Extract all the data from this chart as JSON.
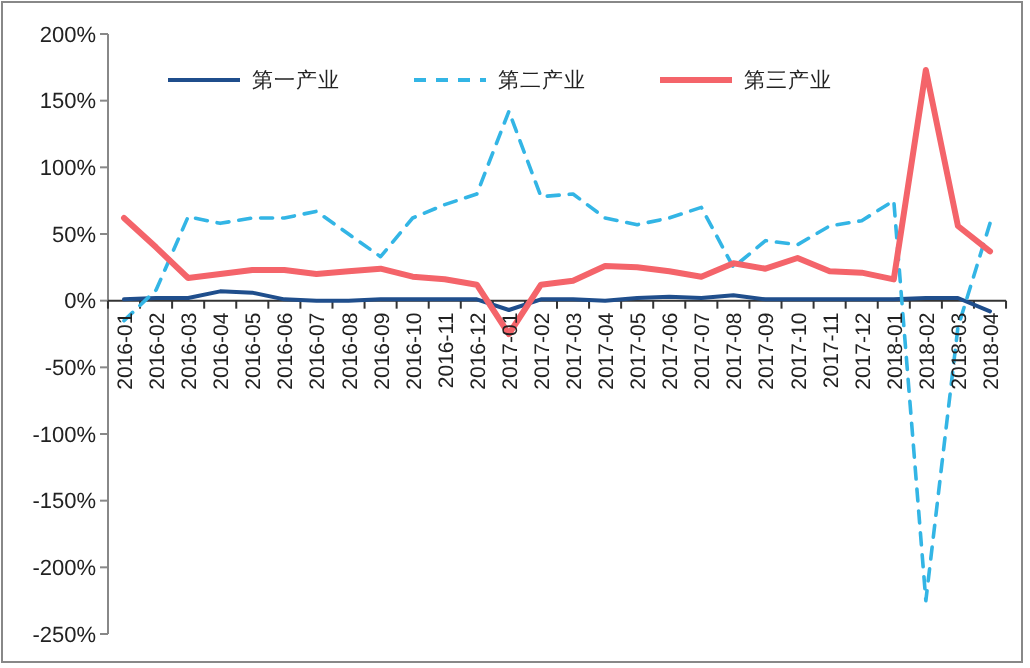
{
  "chart_data": {
    "type": "line",
    "categories": [
      "2016-01",
      "2016-02",
      "2016-03",
      "2016-04",
      "2016-05",
      "2016-06",
      "2016-07",
      "2016-08",
      "2016-09",
      "2016-10",
      "2016-11",
      "2016-12",
      "2017-01",
      "2017-02",
      "2017-03",
      "2017-04",
      "2017-05",
      "2017-06",
      "2017-07",
      "2017-08",
      "2017-09",
      "2017-10",
      "2017-11",
      "2017-12",
      "2018-01",
      "2018-02",
      "2018-03",
      "2018-04"
    ],
    "series": [
      {
        "name": "第一产业",
        "color": "#1f4e8c",
        "line_style": "solid",
        "values": [
          1,
          2,
          2,
          7,
          6,
          1,
          0,
          0,
          1,
          1,
          1,
          1,
          -7,
          1,
          1,
          0,
          2,
          3,
          2,
          4,
          1,
          1,
          1,
          1,
          1,
          2,
          2,
          -8
        ]
      },
      {
        "name": "第二产业",
        "color": "#33b5e5",
        "line_style": "dashed",
        "values": [
          -15,
          8,
          63,
          58,
          62,
          62,
          67,
          50,
          33,
          62,
          72,
          80,
          142,
          78,
          80,
          62,
          57,
          62,
          70,
          25,
          45,
          42,
          56,
          60,
          75,
          -225,
          -20,
          58
        ]
      },
      {
        "name": "第三产业",
        "color": "#f4646a",
        "line_style": "solid",
        "values": [
          62,
          40,
          17,
          20,
          23,
          23,
          20,
          22,
          24,
          18,
          16,
          12,
          -25,
          12,
          15,
          26,
          25,
          22,
          18,
          28,
          24,
          32,
          22,
          21,
          16,
          173,
          56,
          37
        ]
      }
    ],
    "ylim": [
      -250,
      200
    ],
    "yticks": [
      {
        "value": -250,
        "label": "-250%"
      },
      {
        "value": -200,
        "label": "-200%"
      },
      {
        "value": -150,
        "label": "-150%"
      },
      {
        "value": -100,
        "label": "-100%"
      },
      {
        "value": -50,
        "label": "-50%"
      },
      {
        "value": 0,
        "label": "0%"
      },
      {
        "value": 50,
        "label": "50%"
      },
      {
        "value": 100,
        "label": "100%"
      },
      {
        "value": 150,
        "label": "150%"
      },
      {
        "value": 200,
        "label": "200%"
      }
    ],
    "legend": "top",
    "grid": false,
    "marker": "none"
  }
}
